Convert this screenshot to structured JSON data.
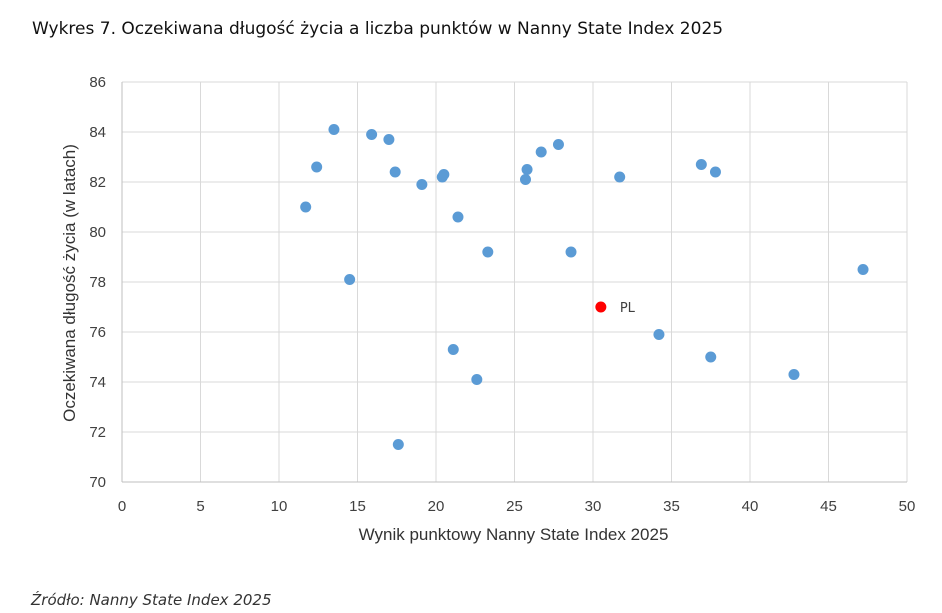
{
  "title": "Wykres 7. Oczekiwana długość życia a liczba punktów w Nanny State Index 2025",
  "source": "Źródło: Nanny State Index 2025",
  "colors": {
    "point": "#5B9BD5",
    "highlight": "#FF0000",
    "grid": "#D9D9D9",
    "axis": "#BFBFBF"
  },
  "chart_data": {
    "type": "scatter",
    "xlabel": "Wynik punktowy Nanny State Index 2025",
    "ylabel": "Oczekiwana długość życia (w latach)",
    "xlim": [
      0,
      50
    ],
    "ylim": [
      70,
      86
    ],
    "xticks": [
      0,
      5,
      10,
      15,
      20,
      25,
      30,
      35,
      40,
      45,
      50
    ],
    "yticks": [
      70,
      72,
      74,
      76,
      78,
      80,
      82,
      84,
      86
    ],
    "grid": true,
    "points": [
      {
        "x": 11.7,
        "y": 81.0
      },
      {
        "x": 12.4,
        "y": 82.6
      },
      {
        "x": 13.5,
        "y": 84.1
      },
      {
        "x": 14.5,
        "y": 78.1
      },
      {
        "x": 15.9,
        "y": 83.9
      },
      {
        "x": 17.0,
        "y": 83.7
      },
      {
        "x": 17.4,
        "y": 82.4
      },
      {
        "x": 17.6,
        "y": 71.5
      },
      {
        "x": 19.1,
        "y": 81.9
      },
      {
        "x": 20.4,
        "y": 82.2
      },
      {
        "x": 20.5,
        "y": 82.3
      },
      {
        "x": 21.1,
        "y": 75.3
      },
      {
        "x": 21.4,
        "y": 80.6
      },
      {
        "x": 22.6,
        "y": 74.1
      },
      {
        "x": 23.3,
        "y": 79.2
      },
      {
        "x": 25.7,
        "y": 82.1
      },
      {
        "x": 25.8,
        "y": 82.5
      },
      {
        "x": 26.7,
        "y": 83.2
      },
      {
        "x": 27.8,
        "y": 83.5
      },
      {
        "x": 28.6,
        "y": 79.2
      },
      {
        "x": 31.7,
        "y": 82.2
      },
      {
        "x": 34.2,
        "y": 75.9
      },
      {
        "x": 36.9,
        "y": 82.7
      },
      {
        "x": 37.5,
        "y": 75.0
      },
      {
        "x": 37.8,
        "y": 82.4
      },
      {
        "x": 42.8,
        "y": 74.3
      },
      {
        "x": 47.2,
        "y": 78.5
      }
    ],
    "highlight": {
      "label": "PL",
      "x": 30.5,
      "y": 77.0
    }
  }
}
